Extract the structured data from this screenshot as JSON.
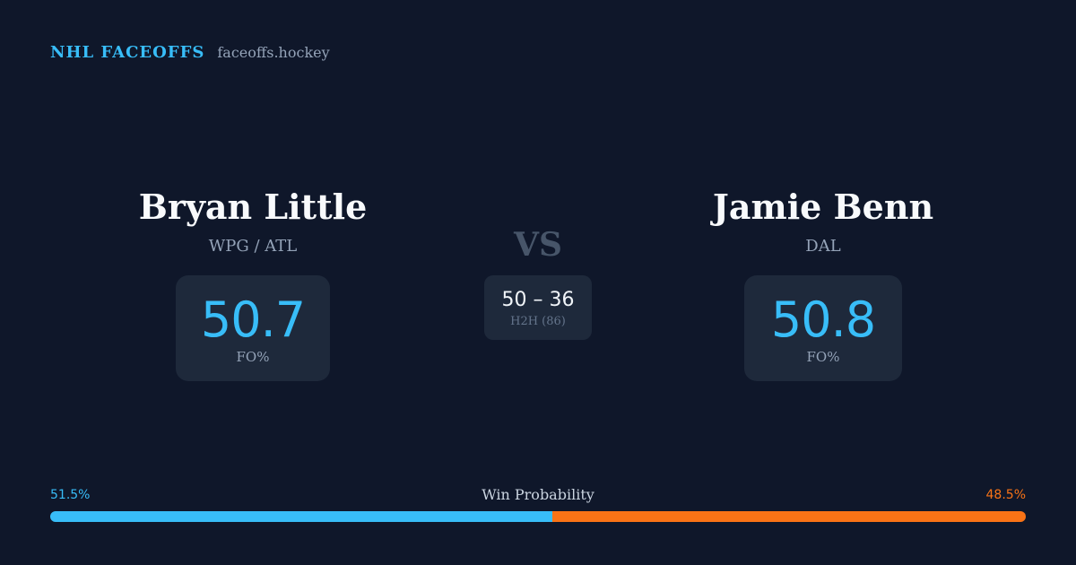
{
  "brand": {
    "title": "NHL FACEOFFS",
    "domain": "faceoffs.hockey"
  },
  "players": {
    "left": {
      "name": "Bryan Little",
      "team": "WPG / ATL",
      "stat_value": "50.7",
      "stat_label": "FO%"
    },
    "right": {
      "name": "Jamie Benn",
      "team": "DAL",
      "stat_value": "50.8",
      "stat_label": "FO%"
    }
  },
  "matchup": {
    "vs": "VS",
    "h2h_score": "50 – 36",
    "h2h_label": "H2H (86)"
  },
  "win_probability": {
    "title": "Win Probability",
    "left_label": "51.5%",
    "right_label": "48.5%",
    "left_value": 51.5,
    "right_value": 48.5
  },
  "colors": {
    "background": "#0f172a",
    "card": "#1e293b",
    "accent_left": "#38bdf8",
    "accent_right": "#f97316",
    "muted": "#94a3b8"
  }
}
